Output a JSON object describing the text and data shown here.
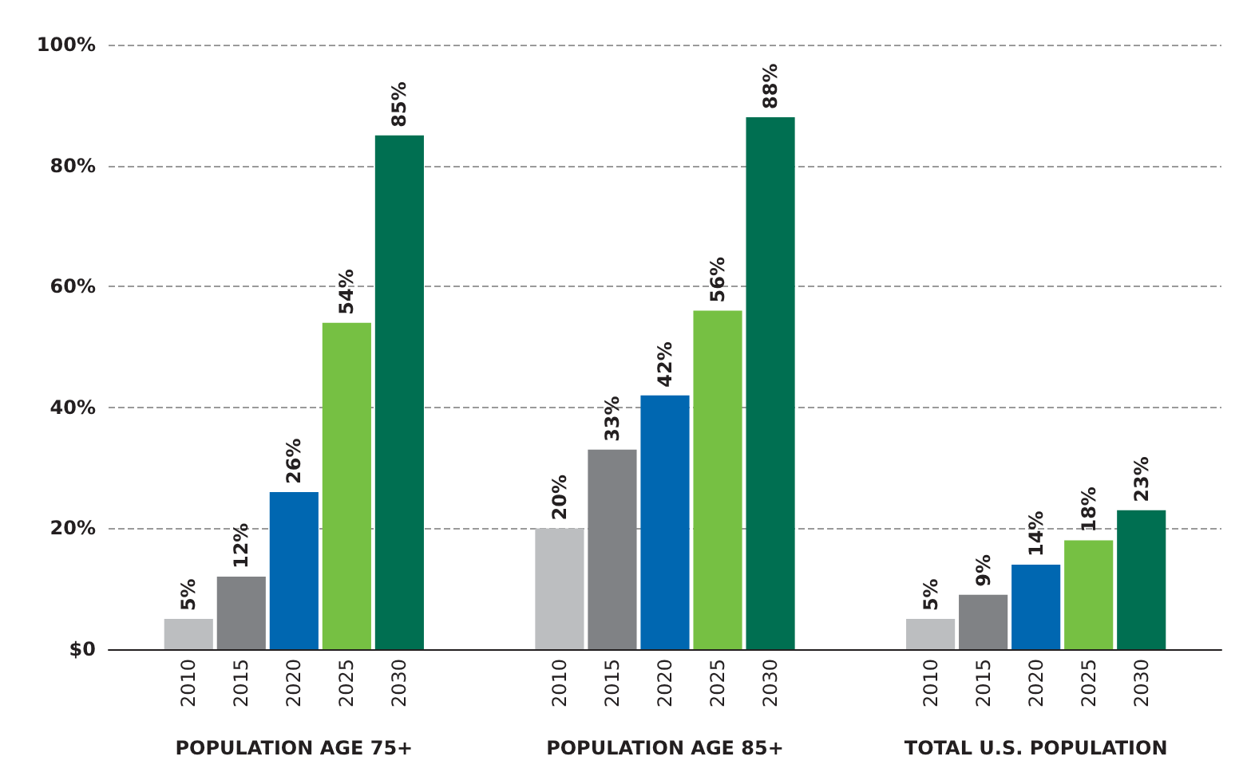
{
  "chart_data": {
    "type": "bar",
    "categories": [
      "POPULATION AGE 75+",
      "POPULATION AGE 85+",
      "TOTAL U.S. POPULATION"
    ],
    "series": [
      {
        "name": "2010",
        "color": "#bcbec0",
        "values": [
          5,
          20,
          5
        ],
        "value_labels": [
          "5%",
          "20%",
          "5%"
        ]
      },
      {
        "name": "2015",
        "color": "#808285",
        "values": [
          12,
          33,
          9
        ],
        "value_labels": [
          "12%",
          "33%",
          "9%"
        ]
      },
      {
        "name": "2020",
        "color": "#0067b1",
        "values": [
          26,
          42,
          14
        ],
        "value_labels": [
          "26%",
          "42%",
          "14%"
        ]
      },
      {
        "name": "2025",
        "color": "#76c043",
        "values": [
          54,
          56,
          18
        ],
        "value_labels": [
          "54%",
          "56%",
          "18%"
        ]
      },
      {
        "name": "2030",
        "color": "#006f51",
        "values": [
          85,
          88,
          23
        ],
        "value_labels": [
          "85%",
          "88%",
          "23%"
        ]
      }
    ],
    "ylim": [
      0,
      100
    ],
    "yticks": [
      {
        "value": 0,
        "label": "$0"
      },
      {
        "value": 20,
        "label": "20%"
      },
      {
        "value": 40,
        "label": "40%"
      },
      {
        "value": 60,
        "label": "60%"
      },
      {
        "value": 80,
        "label": "80%"
      },
      {
        "value": 100,
        "label": "100%"
      }
    ],
    "grid": "y",
    "legend": false
  }
}
